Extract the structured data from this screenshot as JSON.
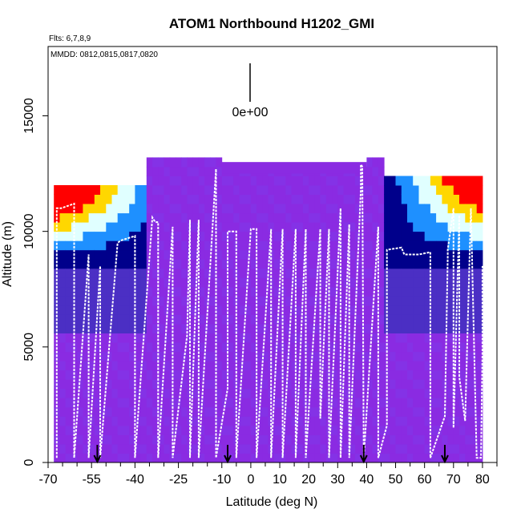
{
  "chart_data": {
    "type": "heatmap",
    "title": "ATOM1 Northbound H1202_GMI",
    "flights_label": "Flts: 6,7,8,9",
    "dates_label": "MMDD: 0812,0815,0817,0820",
    "scale_label": "0e+00",
    "xlabel": "Latitude (deg N)",
    "ylabel": "Altitude (m)",
    "xlim": [
      -70,
      85
    ],
    "ylim": [
      0,
      18000
    ],
    "x_ticks": [
      -70,
      -55,
      -40,
      -25,
      -10,
      0,
      10,
      20,
      30,
      40,
      50,
      60,
      70,
      80
    ],
    "x_minor_ticks": [
      -65,
      -60,
      -50,
      -45,
      -35,
      -30,
      -20,
      -15,
      -5,
      5,
      15,
      25,
      35,
      45,
      55,
      65,
      75,
      85
    ],
    "y_ticks": [
      0,
      5000,
      10000,
      15000
    ],
    "flight_track_color": "#ffffff",
    "background_color": "#8a2be2",
    "high_value_colors": [
      "#00008b",
      "#1e90ff",
      "#e0ffff",
      "#ffd700",
      "#ff0000"
    ],
    "arrow_latitudes": [
      -53,
      -8,
      39,
      67
    ],
    "flight_track": [
      [
        -67,
        200
      ],
      [
        -67,
        11000
      ],
      [
        -65.5,
        11000
      ],
      [
        -61,
        11200
      ],
      [
        -61,
        200
      ],
      [
        -56,
        9000
      ],
      [
        -56,
        200
      ],
      [
        -52,
        8500
      ],
      [
        -52,
        200
      ],
      [
        -46,
        9500
      ],
      [
        -45,
        9600
      ],
      [
        -40,
        9800
      ],
      [
        -40,
        200
      ],
      [
        -34,
        10600
      ],
      [
        -33,
        10400
      ],
      [
        -32,
        10400
      ],
      [
        -32,
        200
      ],
      [
        -27,
        10200
      ],
      [
        -27,
        200
      ],
      [
        -22,
        5500
      ],
      [
        -21,
        10500
      ],
      [
        -21,
        200
      ],
      [
        -18,
        10500
      ],
      [
        -18,
        200
      ],
      [
        -12,
        12700
      ],
      [
        -12,
        200
      ],
      [
        -8,
        3200
      ],
      [
        -8,
        10000
      ],
      [
        -5,
        10000
      ],
      [
        -5,
        200
      ],
      [
        0,
        10100
      ],
      [
        2,
        10100
      ],
      [
        2,
        200
      ],
      [
        7,
        10100
      ],
      [
        7,
        200
      ],
      [
        11,
        10100
      ],
      [
        11,
        200
      ],
      [
        15.5,
        10100
      ],
      [
        15.5,
        200
      ],
      [
        19,
        10100
      ],
      [
        19,
        200
      ],
      [
        24,
        10100
      ],
      [
        24,
        1900
      ],
      [
        27,
        10100
      ],
      [
        27,
        200
      ],
      [
        31,
        11000
      ],
      [
        31,
        200
      ],
      [
        34,
        10300
      ],
      [
        34,
        200
      ],
      [
        38,
        11800
      ],
      [
        38,
        12900
      ],
      [
        38.5,
        12800
      ],
      [
        39,
        200
      ],
      [
        44,
        10200
      ],
      [
        44,
        200
      ],
      [
        47,
        1600
      ],
      [
        47,
        9200
      ],
      [
        52,
        9300
      ],
      [
        53,
        9000
      ],
      [
        58,
        9000
      ],
      [
        62,
        9100
      ],
      [
        62,
        200
      ],
      [
        67,
        2000
      ],
      [
        68,
        8900
      ],
      [
        68,
        9200
      ],
      [
        70,
        11000
      ],
      [
        70,
        1500
      ],
      [
        72,
        10700
      ],
      [
        72,
        3700
      ],
      [
        74,
        1800
      ],
      [
        76,
        11000
      ],
      [
        78,
        200
      ],
      [
        79.5,
        200
      ],
      [
        80,
        4800
      ],
      [
        80,
        8500
      ]
    ]
  }
}
